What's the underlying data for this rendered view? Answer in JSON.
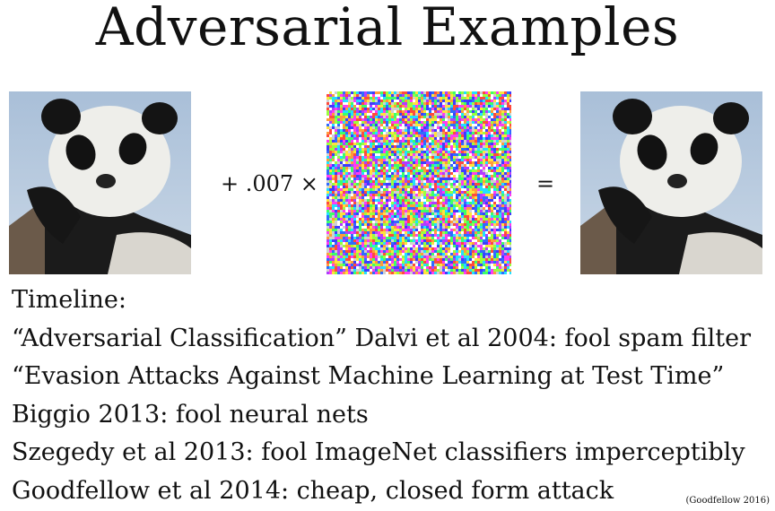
{
  "slide": {
    "title": "Adversarial Examples",
    "equation": {
      "multiplier_text": "+ .007 ×",
      "equals_text": "="
    },
    "timeline": {
      "heading": "Timeline:",
      "items": [
        "“Adversarial Classification” Dalvi et al 2004: fool spam filter",
        "“Evasion Attacks Against Machine Learning at Test Time”",
        "Biggio 2013: fool neural nets",
        "Szegedy et al 2013: fool ImageNet classifiers imperceptibly",
        "Goodfellow et al 2014: cheap, closed form attack"
      ]
    },
    "credit": "(Goodfellow 2016)",
    "colors": {
      "sky": "#b7cbe0",
      "fur_dark": "#151515",
      "fur_light": "#ececec"
    }
  }
}
